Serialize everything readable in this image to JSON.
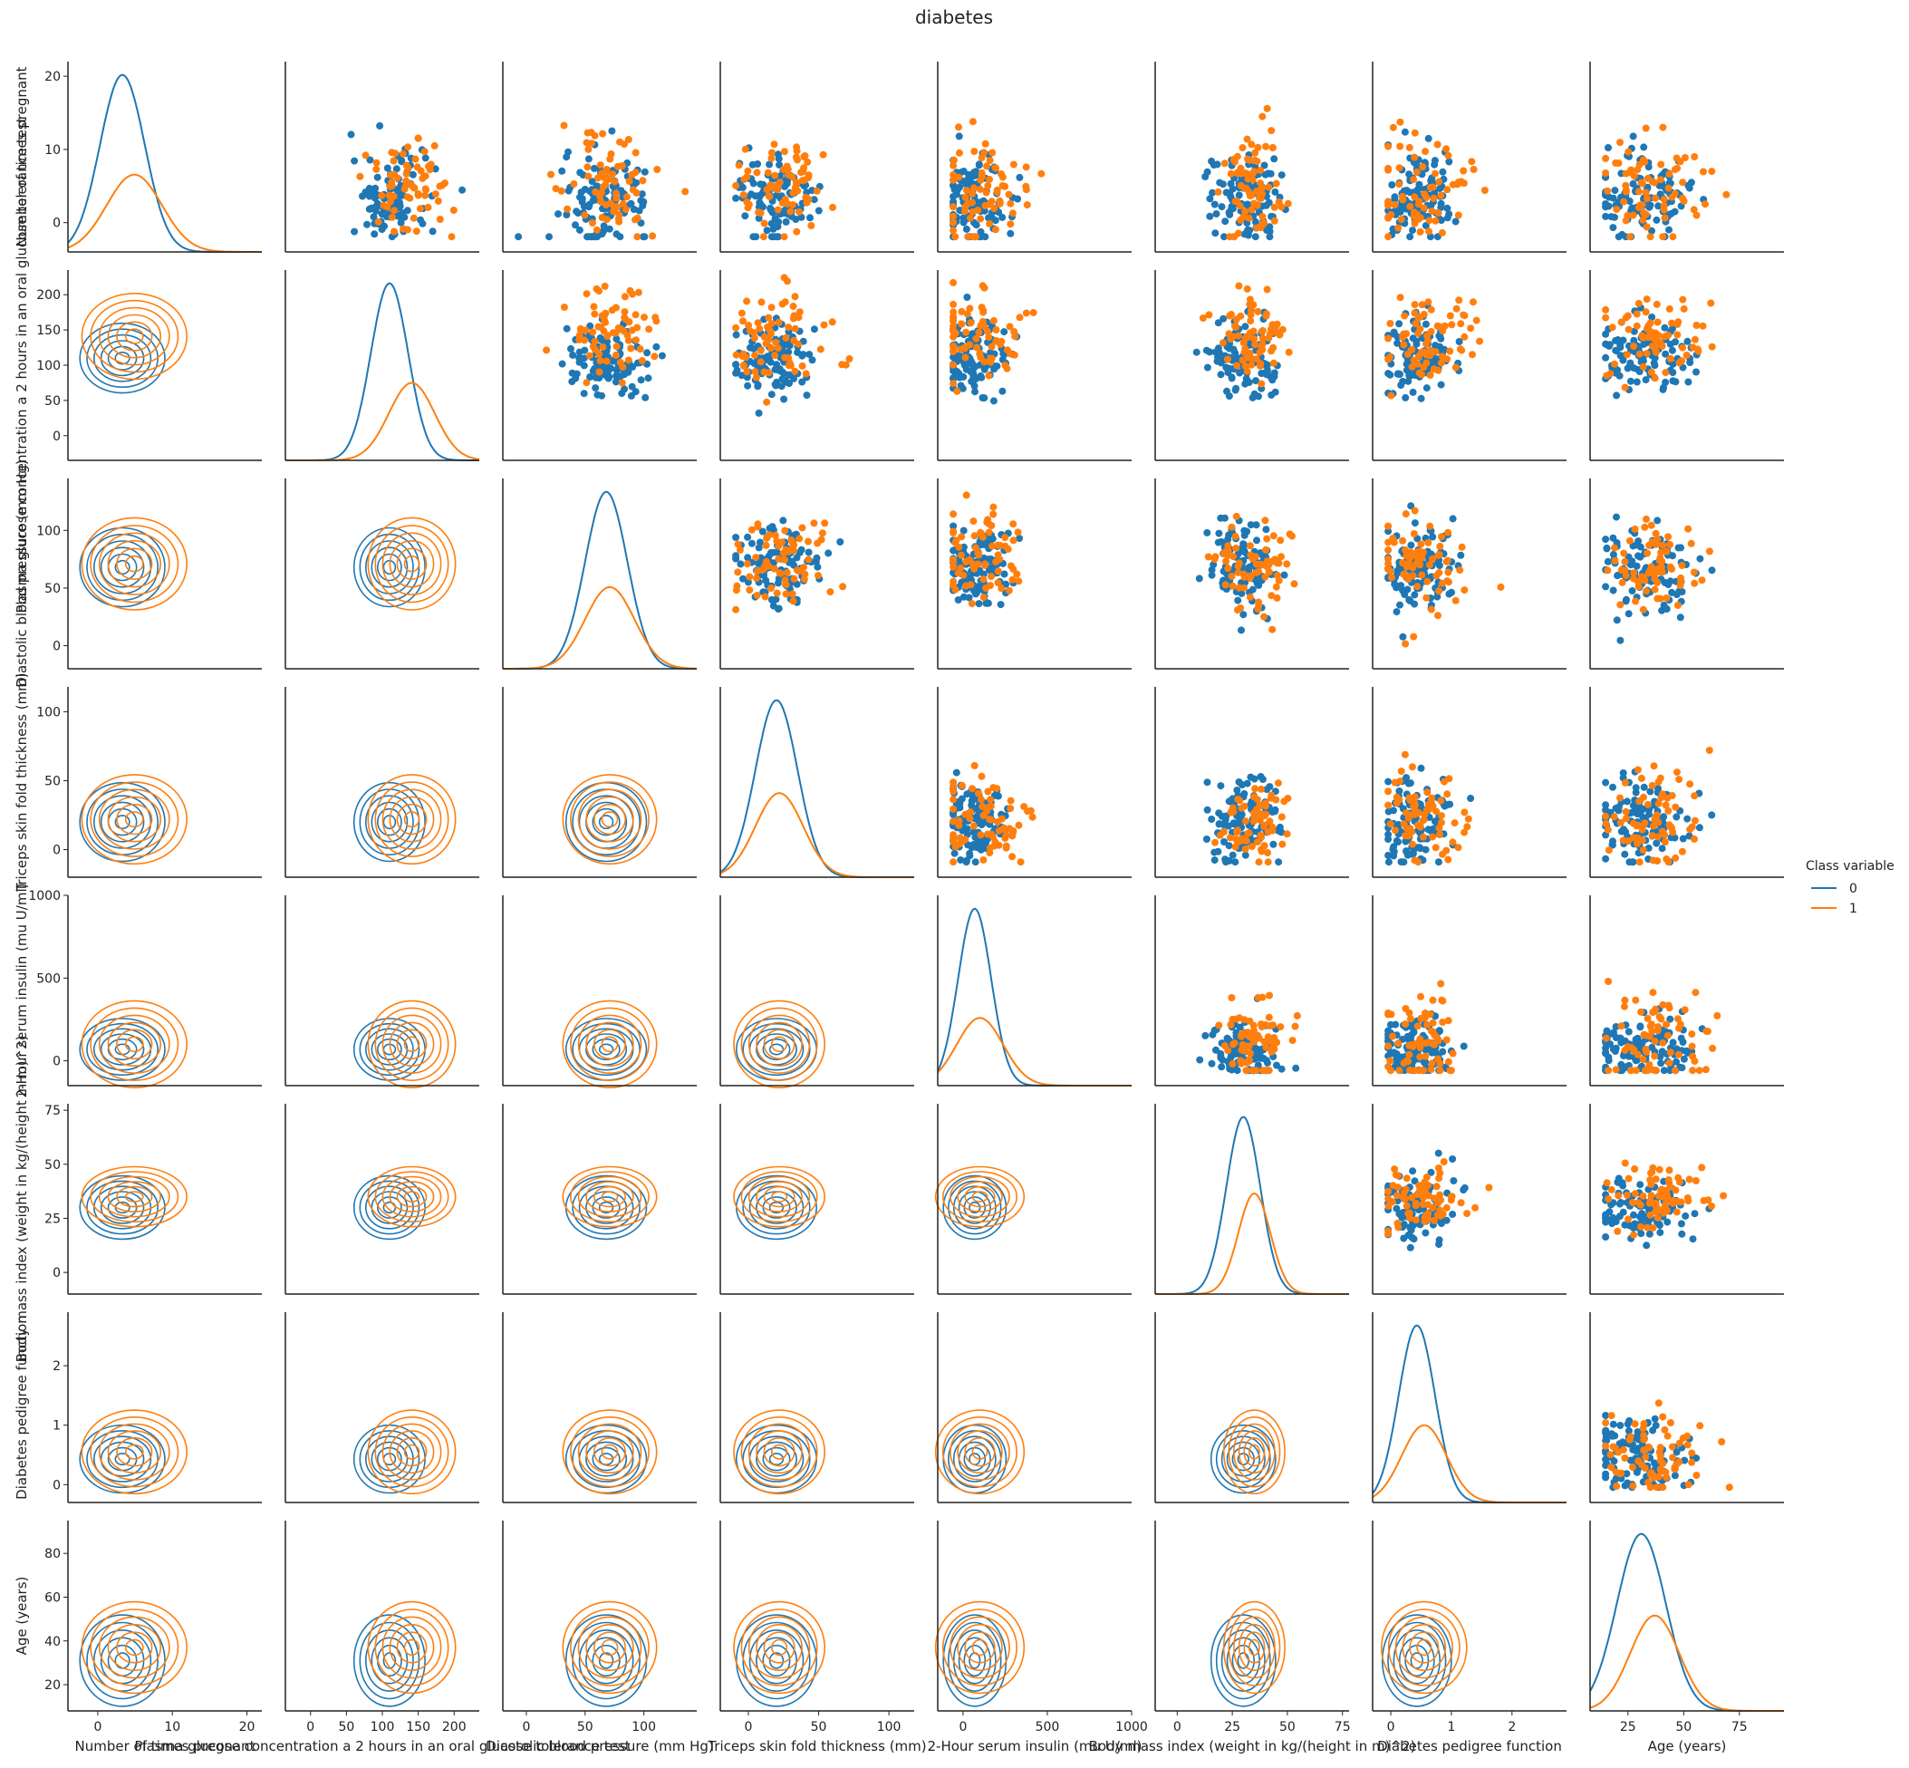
{
  "chart_data": {
    "type": "scatter",
    "subtype": "pairplot",
    "title": "diabetes",
    "grid": false,
    "legend": {
      "title": "Class variable",
      "placement": "right",
      "entries": [
        {
          "label": "0",
          "color": "#1f77b4"
        },
        {
          "label": "1",
          "color": "#ff7f0e"
        }
      ]
    },
    "diagonal": "kde",
    "upper": "scatter",
    "lower": "kde",
    "variables": [
      {
        "key": "preg",
        "label": "Number of times pregnant",
        "range": [
          -4,
          22
        ],
        "ticks": [
          0,
          10,
          20
        ],
        "class0": {
          "center": 3.3,
          "spread": 3.0
        },
        "class1": {
          "center": 4.9,
          "spread": 3.7
        }
      },
      {
        "key": "gluc",
        "label": "Plasma glucose concentration a 2 hours in an oral glucose tolerance test",
        "range": [
          -35,
          235
        ],
        "ticks": [
          0,
          50,
          100,
          150,
          200
        ],
        "class0": {
          "center": 110,
          "spread": 26
        },
        "class1": {
          "center": 141,
          "spread": 32
        }
      },
      {
        "key": "bp",
        "label": "Diastolic blood pressure (mm Hg)",
        "range": [
          -20,
          145
        ],
        "ticks": [
          0,
          50,
          100
        ],
        "class0": {
          "center": 68,
          "spread": 18
        },
        "class1": {
          "center": 71,
          "spread": 21
        }
      },
      {
        "key": "skin",
        "label": "Triceps skin fold thickness (mm)",
        "range": [
          -20,
          118
        ],
        "ticks": [
          0,
          50,
          100
        ],
        "class0": {
          "center": 20,
          "spread": 15
        },
        "class1": {
          "center": 22,
          "spread": 17
        }
      },
      {
        "key": "ins",
        "label": "2-Hour serum insulin (mu U/ml)",
        "range": [
          -150,
          1000
        ],
        "ticks": [
          0,
          500,
          1000
        ],
        "class0": {
          "center": 69,
          "spread": 98
        },
        "class1": {
          "center": 100,
          "spread": 138
        }
      },
      {
        "key": "bmi",
        "label": "Body mass index (weight in kg/(height in m)^2)",
        "range": [
          -10,
          78
        ],
        "ticks": [
          0,
          25,
          50,
          75
        ],
        "class0": {
          "center": 30,
          "spread": 7.7
        },
        "class1": {
          "center": 35,
          "spread": 7.3
        }
      },
      {
        "key": "dpf",
        "label": "Diabetes pedigree function",
        "range": [
          -0.3,
          2.9
        ],
        "ticks": [
          0,
          1,
          2
        ],
        "class0": {
          "center": 0.43,
          "spread": 0.3
        },
        "class1": {
          "center": 0.55,
          "spread": 0.37
        }
      },
      {
        "key": "age",
        "label": "Age (years)",
        "range": [
          8,
          95
        ],
        "ticks": [
          20,
          40,
          60,
          80
        ],
        "ticks_x": [
          25,
          50,
          75
        ],
        "class0": {
          "center": 31,
          "spread": 11
        },
        "class1": {
          "center": 37,
          "spread": 11
        }
      }
    ]
  }
}
